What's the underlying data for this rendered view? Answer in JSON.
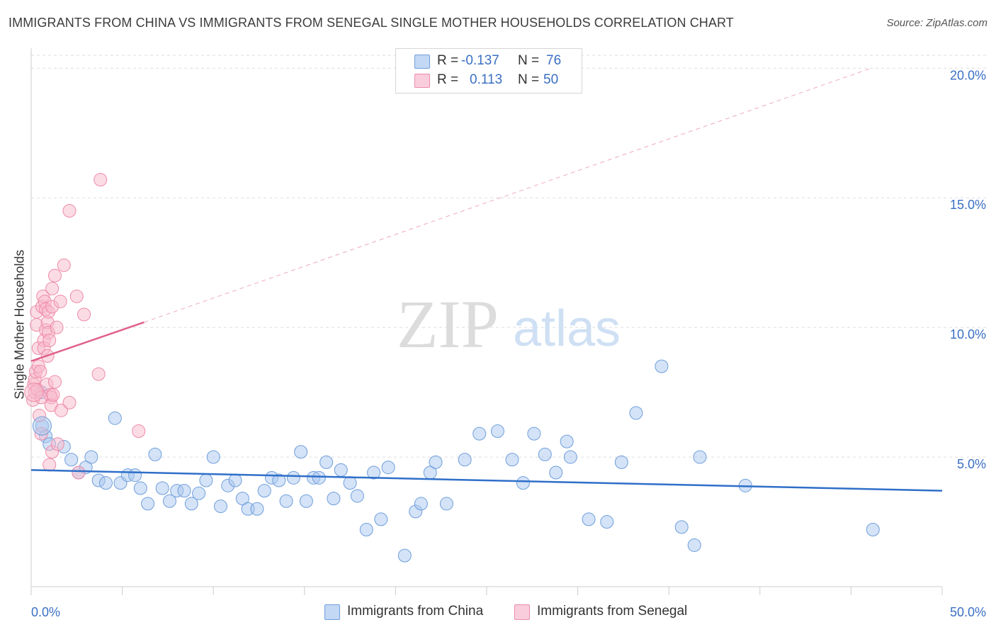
{
  "header": {
    "title": "IMMIGRANTS FROM CHINA VS IMMIGRANTS FROM SENEGAL SINGLE MOTHER HOUSEHOLDS CORRELATION CHART",
    "source": "Source: ZipAtlas.com"
  },
  "watermark": {
    "zip": "ZIP",
    "atlas": "atlas"
  },
  "legend": {
    "r_label": "R =",
    "n_label": "N =",
    "rows": [
      {
        "r": "-0.137",
        "n": "76"
      },
      {
        "r": "0.113",
        "n": "50"
      }
    ]
  },
  "colors": {
    "china_fill": "#a9c8f0",
    "china_stroke": "#6f9edb",
    "china_line": "#2f6fc9",
    "senegal_fill": "#f7b9cc",
    "senegal_stroke": "#ee8aa8",
    "senegal_line": "#e0608a",
    "tick_label": "#3a6fc4",
    "grid": "#dddddd"
  },
  "chart_data": {
    "type": "scatter",
    "title": "IMMIGRANTS FROM CHINA VS IMMIGRANTS FROM SENEGAL SINGLE MOTHER HOUSEHOLDS CORRELATION CHART",
    "xlabel": "",
    "ylabel": "Single Mother Households",
    "xlim": [
      0,
      50
    ],
    "ylim": [
      0,
      20.5
    ],
    "x_tick_labels": [
      "0.0%",
      "50.0%"
    ],
    "y_ticks": [
      5,
      10,
      15,
      20
    ],
    "y_tick_labels": [
      "5.0%",
      "10.0%",
      "15.0%",
      "20.0%"
    ],
    "grid": "horizontal dashed",
    "legend_position": "top-center",
    "series": [
      {
        "name": "Immigrants from China",
        "color": "#a9c8f0",
        "R": -0.137,
        "N": 76,
        "trend": {
          "x": [
            0,
            50
          ],
          "y": [
            4.5,
            3.7
          ],
          "style": "solid"
        },
        "points": [
          [
            0.55,
            7.5
          ],
          [
            0.6,
            6.2
          ],
          [
            0.8,
            5.8
          ],
          [
            1.0,
            5.5
          ],
          [
            1.8,
            5.4
          ],
          [
            2.2,
            4.9
          ],
          [
            2.6,
            4.4
          ],
          [
            3.0,
            4.6
          ],
          [
            3.3,
            5.0
          ],
          [
            3.7,
            4.1
          ],
          [
            4.1,
            4.0
          ],
          [
            4.6,
            6.5
          ],
          [
            4.9,
            4.0
          ],
          [
            5.3,
            4.3
          ],
          [
            5.7,
            4.3
          ],
          [
            6.0,
            3.8
          ],
          [
            6.4,
            3.2
          ],
          [
            6.8,
            5.1
          ],
          [
            7.2,
            3.8
          ],
          [
            7.6,
            3.3
          ],
          [
            8.0,
            3.7
          ],
          [
            8.4,
            3.7
          ],
          [
            8.8,
            3.2
          ],
          [
            9.2,
            3.6
          ],
          [
            9.6,
            4.1
          ],
          [
            10.0,
            5.0
          ],
          [
            10.4,
            3.1
          ],
          [
            10.8,
            3.9
          ],
          [
            11.2,
            4.1
          ],
          [
            11.6,
            3.4
          ],
          [
            11.9,
            3.0
          ],
          [
            12.4,
            3.0
          ],
          [
            12.8,
            3.7
          ],
          [
            13.2,
            4.2
          ],
          [
            13.6,
            4.1
          ],
          [
            14.0,
            3.3
          ],
          [
            14.4,
            4.2
          ],
          [
            14.8,
            5.2
          ],
          [
            15.1,
            3.3
          ],
          [
            15.5,
            4.2
          ],
          [
            15.8,
            4.2
          ],
          [
            16.2,
            4.8
          ],
          [
            16.6,
            3.4
          ],
          [
            17.0,
            4.5
          ],
          [
            17.5,
            4.0
          ],
          [
            17.9,
            3.5
          ],
          [
            18.4,
            2.2
          ],
          [
            18.8,
            4.4
          ],
          [
            19.2,
            2.6
          ],
          [
            19.6,
            4.6
          ],
          [
            20.5,
            1.2
          ],
          [
            21.1,
            2.9
          ],
          [
            21.4,
            3.2
          ],
          [
            21.9,
            4.4
          ],
          [
            22.2,
            4.8
          ],
          [
            22.8,
            3.2
          ],
          [
            23.8,
            4.9
          ],
          [
            24.6,
            5.9
          ],
          [
            25.6,
            6.0
          ],
          [
            26.4,
            4.9
          ],
          [
            27.0,
            4.0
          ],
          [
            27.6,
            5.9
          ],
          [
            28.2,
            5.1
          ],
          [
            28.8,
            4.4
          ],
          [
            29.4,
            5.6
          ],
          [
            29.6,
            5.0
          ],
          [
            30.6,
            2.6
          ],
          [
            31.6,
            2.5
          ],
          [
            32.4,
            4.8
          ],
          [
            33.2,
            6.7
          ],
          [
            34.6,
            8.5
          ],
          [
            35.7,
            2.3
          ],
          [
            36.4,
            1.6
          ],
          [
            36.7,
            5.0
          ],
          [
            39.2,
            3.9
          ],
          [
            46.2,
            2.2
          ]
        ]
      },
      {
        "name": "Immigrants from Senegal",
        "color": "#f7b9cc",
        "R": 0.113,
        "N": 50,
        "trend": {
          "x": [
            0,
            6.2
          ],
          "y": [
            8.7,
            10.2
          ],
          "style": "solid",
          "extended": {
            "x": [
              6.2,
              46.1
            ],
            "y": [
              10.2,
              20.0
            ],
            "style": "dashed"
          }
        },
        "points": [
          [
            0.1,
            7.2
          ],
          [
            0.15,
            7.8
          ],
          [
            0.2,
            8.0
          ],
          [
            0.2,
            7.5
          ],
          [
            0.25,
            8.3
          ],
          [
            0.3,
            10.1
          ],
          [
            0.3,
            10.6
          ],
          [
            0.35,
            7.6
          ],
          [
            0.4,
            9.2
          ],
          [
            0.4,
            8.5
          ],
          [
            0.45,
            6.6
          ],
          [
            0.5,
            8.3
          ],
          [
            0.55,
            5.9
          ],
          [
            0.6,
            10.8
          ],
          [
            0.65,
            11.2
          ],
          [
            0.7,
            9.5
          ],
          [
            0.7,
            9.2
          ],
          [
            0.75,
            11.0
          ],
          [
            0.8,
            10.7
          ],
          [
            0.8,
            9.9
          ],
          [
            0.85,
            7.8
          ],
          [
            0.9,
            10.2
          ],
          [
            0.95,
            10.6
          ],
          [
            0.95,
            9.8
          ],
          [
            1.0,
            9.5
          ],
          [
            1.0,
            4.7
          ],
          [
            1.05,
            7.4
          ],
          [
            1.1,
            7.3
          ],
          [
            1.1,
            7.0
          ],
          [
            1.15,
            10.8
          ],
          [
            1.15,
            11.5
          ],
          [
            1.15,
            5.2
          ],
          [
            1.2,
            7.4
          ],
          [
            1.3,
            7.9
          ],
          [
            1.3,
            12.0
          ],
          [
            1.4,
            10.0
          ],
          [
            1.45,
            5.5
          ],
          [
            1.6,
            11.0
          ],
          [
            1.65,
            6.8
          ],
          [
            1.8,
            12.4
          ],
          [
            2.1,
            14.5
          ],
          [
            2.1,
            7.1
          ],
          [
            2.5,
            11.2
          ],
          [
            2.6,
            4.4
          ],
          [
            2.9,
            10.5
          ],
          [
            3.7,
            8.2
          ],
          [
            3.8,
            15.7
          ],
          [
            5.9,
            6.0
          ],
          [
            0.55,
            7.3
          ],
          [
            0.9,
            8.9
          ]
        ]
      }
    ]
  },
  "bottom_legend": {
    "china": "Immigrants from China",
    "senegal": "Immigrants from Senegal"
  }
}
